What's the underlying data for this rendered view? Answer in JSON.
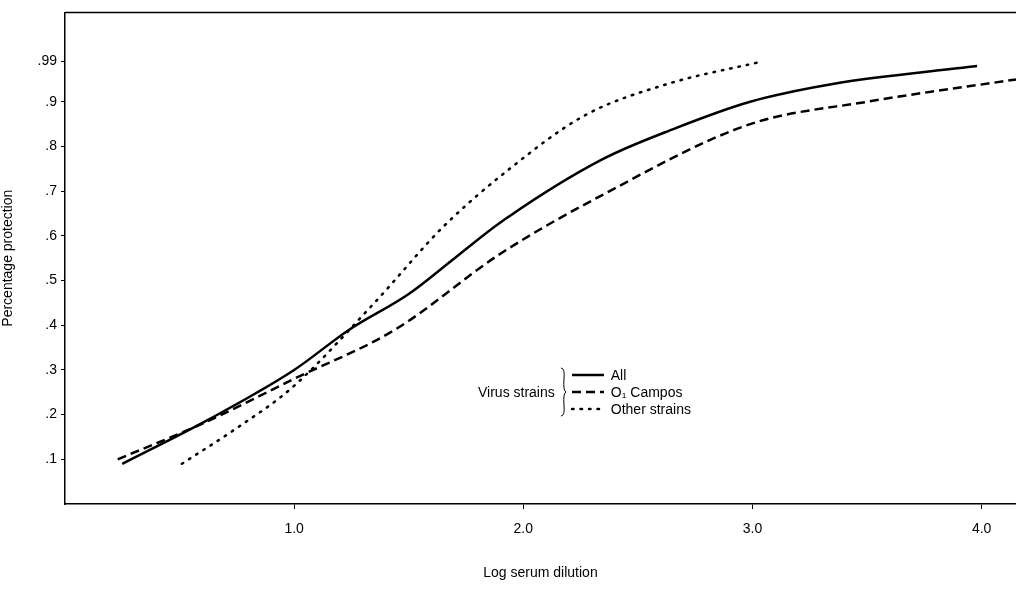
{
  "chart_data": {
    "type": "line",
    "xlabel": "Log serum dilution",
    "ylabel": "Percentage protection",
    "legend_title": "Virus strains",
    "legend": "center",
    "marker": "none",
    "grid": false,
    "xlim": [
      0,
      4.15
    ],
    "xticks": [
      {
        "value": 1,
        "label": "1.0"
      },
      {
        "value": 2,
        "label": "2.0"
      },
      {
        "value": 3,
        "label": "3.0"
      },
      {
        "value": 4,
        "label": "4.0"
      }
    ],
    "ylim": [
      0,
      1.1
    ],
    "yticks": [
      {
        "value": 0.1,
        "label": ".1"
      },
      {
        "value": 0.2,
        "label": ".2"
      },
      {
        "value": 0.3,
        "label": ".3"
      },
      {
        "value": 0.4,
        "label": ".4"
      },
      {
        "value": 0.5,
        "label": ".5"
      },
      {
        "value": 0.6,
        "label": ".6"
      },
      {
        "value": 0.7,
        "label": ".7"
      },
      {
        "value": 0.8,
        "label": ".8"
      },
      {
        "value": 0.9,
        "label": ".9"
      },
      {
        "value": 0.99,
        "label": ".99"
      }
    ],
    "series": [
      {
        "name": "All",
        "color": "#000000",
        "line_style": "solid",
        "x": [
          0.25,
          0.63,
          1.0,
          1.24,
          1.5,
          1.7,
          1.9,
          2.34,
          2.66,
          2.99,
          3.35,
          3.98
        ],
        "values": [
          0.09,
          0.19,
          0.3,
          0.39,
          0.47,
          0.55,
          0.63,
          0.77,
          0.84,
          0.9,
          0.94,
          0.98
        ]
      },
      {
        "name": "O₁ Campos",
        "color": "#000000",
        "line_style": "dashed",
        "x": [
          0.23,
          0.6,
          1.0,
          1.44,
          1.9,
          2.34,
          2.99,
          3.5,
          4.15
        ],
        "values": [
          0.1,
          0.18,
          0.28,
          0.39,
          0.56,
          0.69,
          0.85,
          0.9,
          0.95
        ]
      },
      {
        "name": "Other strains",
        "color": "#000000",
        "line_style": "dotted",
        "x": [
          0.51,
          0.75,
          0.99,
          1.35,
          1.65,
          1.94,
          2.27,
          2.63,
          3.04
        ],
        "values": [
          0.09,
          0.17,
          0.26,
          0.45,
          0.62,
          0.75,
          0.87,
          0.94,
          0.99
        ]
      }
    ]
  }
}
